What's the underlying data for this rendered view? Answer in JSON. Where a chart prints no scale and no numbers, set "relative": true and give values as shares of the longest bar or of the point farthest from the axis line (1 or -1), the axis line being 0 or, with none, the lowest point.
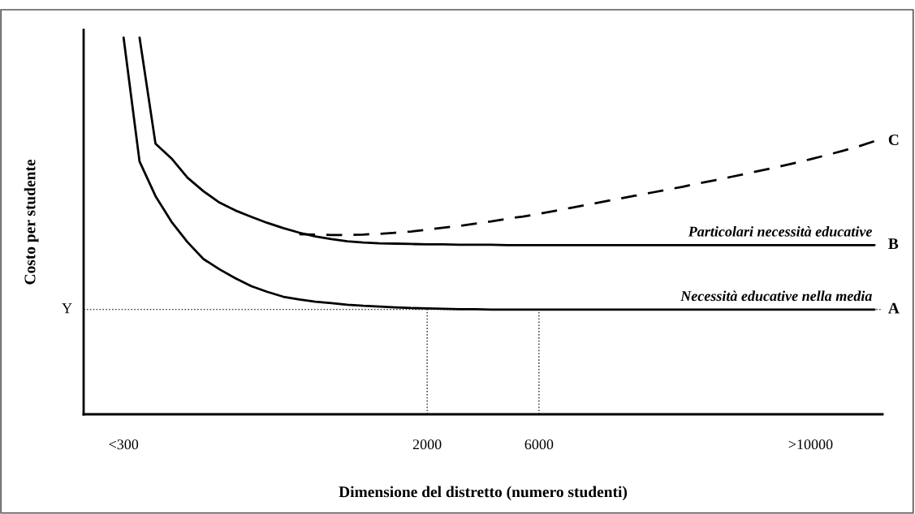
{
  "chart_data": {
    "type": "line",
    "relative": true,
    "xlabel": "Dimensione del distretto (numero studenti)",
    "ylabel": "Costo per studente",
    "categories": [
      null,
      null,
      "<300",
      null,
      null,
      null,
      null,
      null,
      null,
      null,
      null,
      null,
      null,
      null,
      null,
      null,
      null,
      null,
      null,
      null,
      null,
      "2000",
      null,
      null,
      null,
      null,
      null,
      null,
      "6000",
      null,
      null,
      null,
      null,
      null,
      null,
      null,
      null,
      null,
      null,
      null,
      null,
      null,
      null,
      null,
      null,
      ">10000",
      null,
      null,
      null,
      null
    ],
    "series": [
      {
        "name": "A",
        "color": "#000000",
        "line_style": "solid",
        "values": [
          null,
          null,
          1.0,
          0.671,
          0.579,
          0.511,
          0.457,
          0.412,
          0.385,
          0.361,
          0.34,
          0.325,
          0.312,
          0.305,
          0.299,
          0.295,
          0.291,
          0.288,
          0.286,
          0.284,
          0.282,
          0.281,
          0.28,
          0.279,
          0.279,
          0.278,
          0.278,
          0.278,
          0.278,
          0.278,
          0.278,
          0.278,
          0.278,
          0.278,
          0.278,
          0.278,
          0.278,
          0.278,
          0.278,
          0.278,
          0.278,
          0.278,
          0.278,
          0.278,
          0.278,
          0.278,
          0.278,
          0.278,
          0.278,
          0.278
        ]
      },
      {
        "name": "B",
        "color": "#000000",
        "line_style": "solid",
        "values": [
          null,
          null,
          null,
          1.0,
          0.718,
          0.679,
          0.628,
          0.592,
          0.562,
          0.541,
          0.524,
          0.508,
          0.494,
          0.482,
          0.472,
          0.465,
          0.459,
          0.456,
          0.454,
          0.453,
          0.452,
          0.451,
          0.451,
          0.45,
          0.45,
          0.45,
          0.449,
          0.449,
          0.449,
          0.449,
          0.449,
          0.449,
          0.449,
          0.449,
          0.449,
          0.449,
          0.449,
          0.449,
          0.449,
          0.449,
          0.449,
          0.449,
          0.449,
          0.449,
          0.449,
          0.449,
          0.449,
          0.449,
          0.449,
          0.449
        ]
      },
      {
        "name": "C",
        "color": "#000000",
        "line_style": "dashed",
        "values": [
          null,
          null,
          null,
          null,
          null,
          null,
          null,
          null,
          null,
          null,
          null,
          null,
          null,
          0.478,
          0.477,
          0.476,
          0.476,
          0.477,
          0.479,
          0.482,
          0.485,
          0.49,
          0.495,
          0.5,
          0.506,
          0.512,
          0.519,
          0.525,
          0.532,
          0.54,
          0.548,
          0.556,
          0.564,
          0.572,
          0.58,
          0.588,
          0.596,
          0.604,
          0.613,
          0.621,
          0.63,
          0.639,
          0.648,
          0.657,
          0.667,
          0.677,
          0.688,
          0.699,
          0.711,
          0.725
        ]
      }
    ],
    "annotations": [
      "Necessità educative nella media",
      "Particolari necessità educative"
    ],
    "ref_lines": [
      {
        "axis": "y",
        "value": 0.278,
        "label": "Y",
        "line_style": "dotted",
        "color": "#000000"
      },
      {
        "axis": "x",
        "value": "2000",
        "label": null,
        "line_style": "dotted",
        "color": "#000000"
      },
      {
        "axis": "x",
        "value": "6000",
        "label": null,
        "line_style": "dotted",
        "color": "#000000"
      }
    ],
    "grid": false,
    "legend": false
  }
}
